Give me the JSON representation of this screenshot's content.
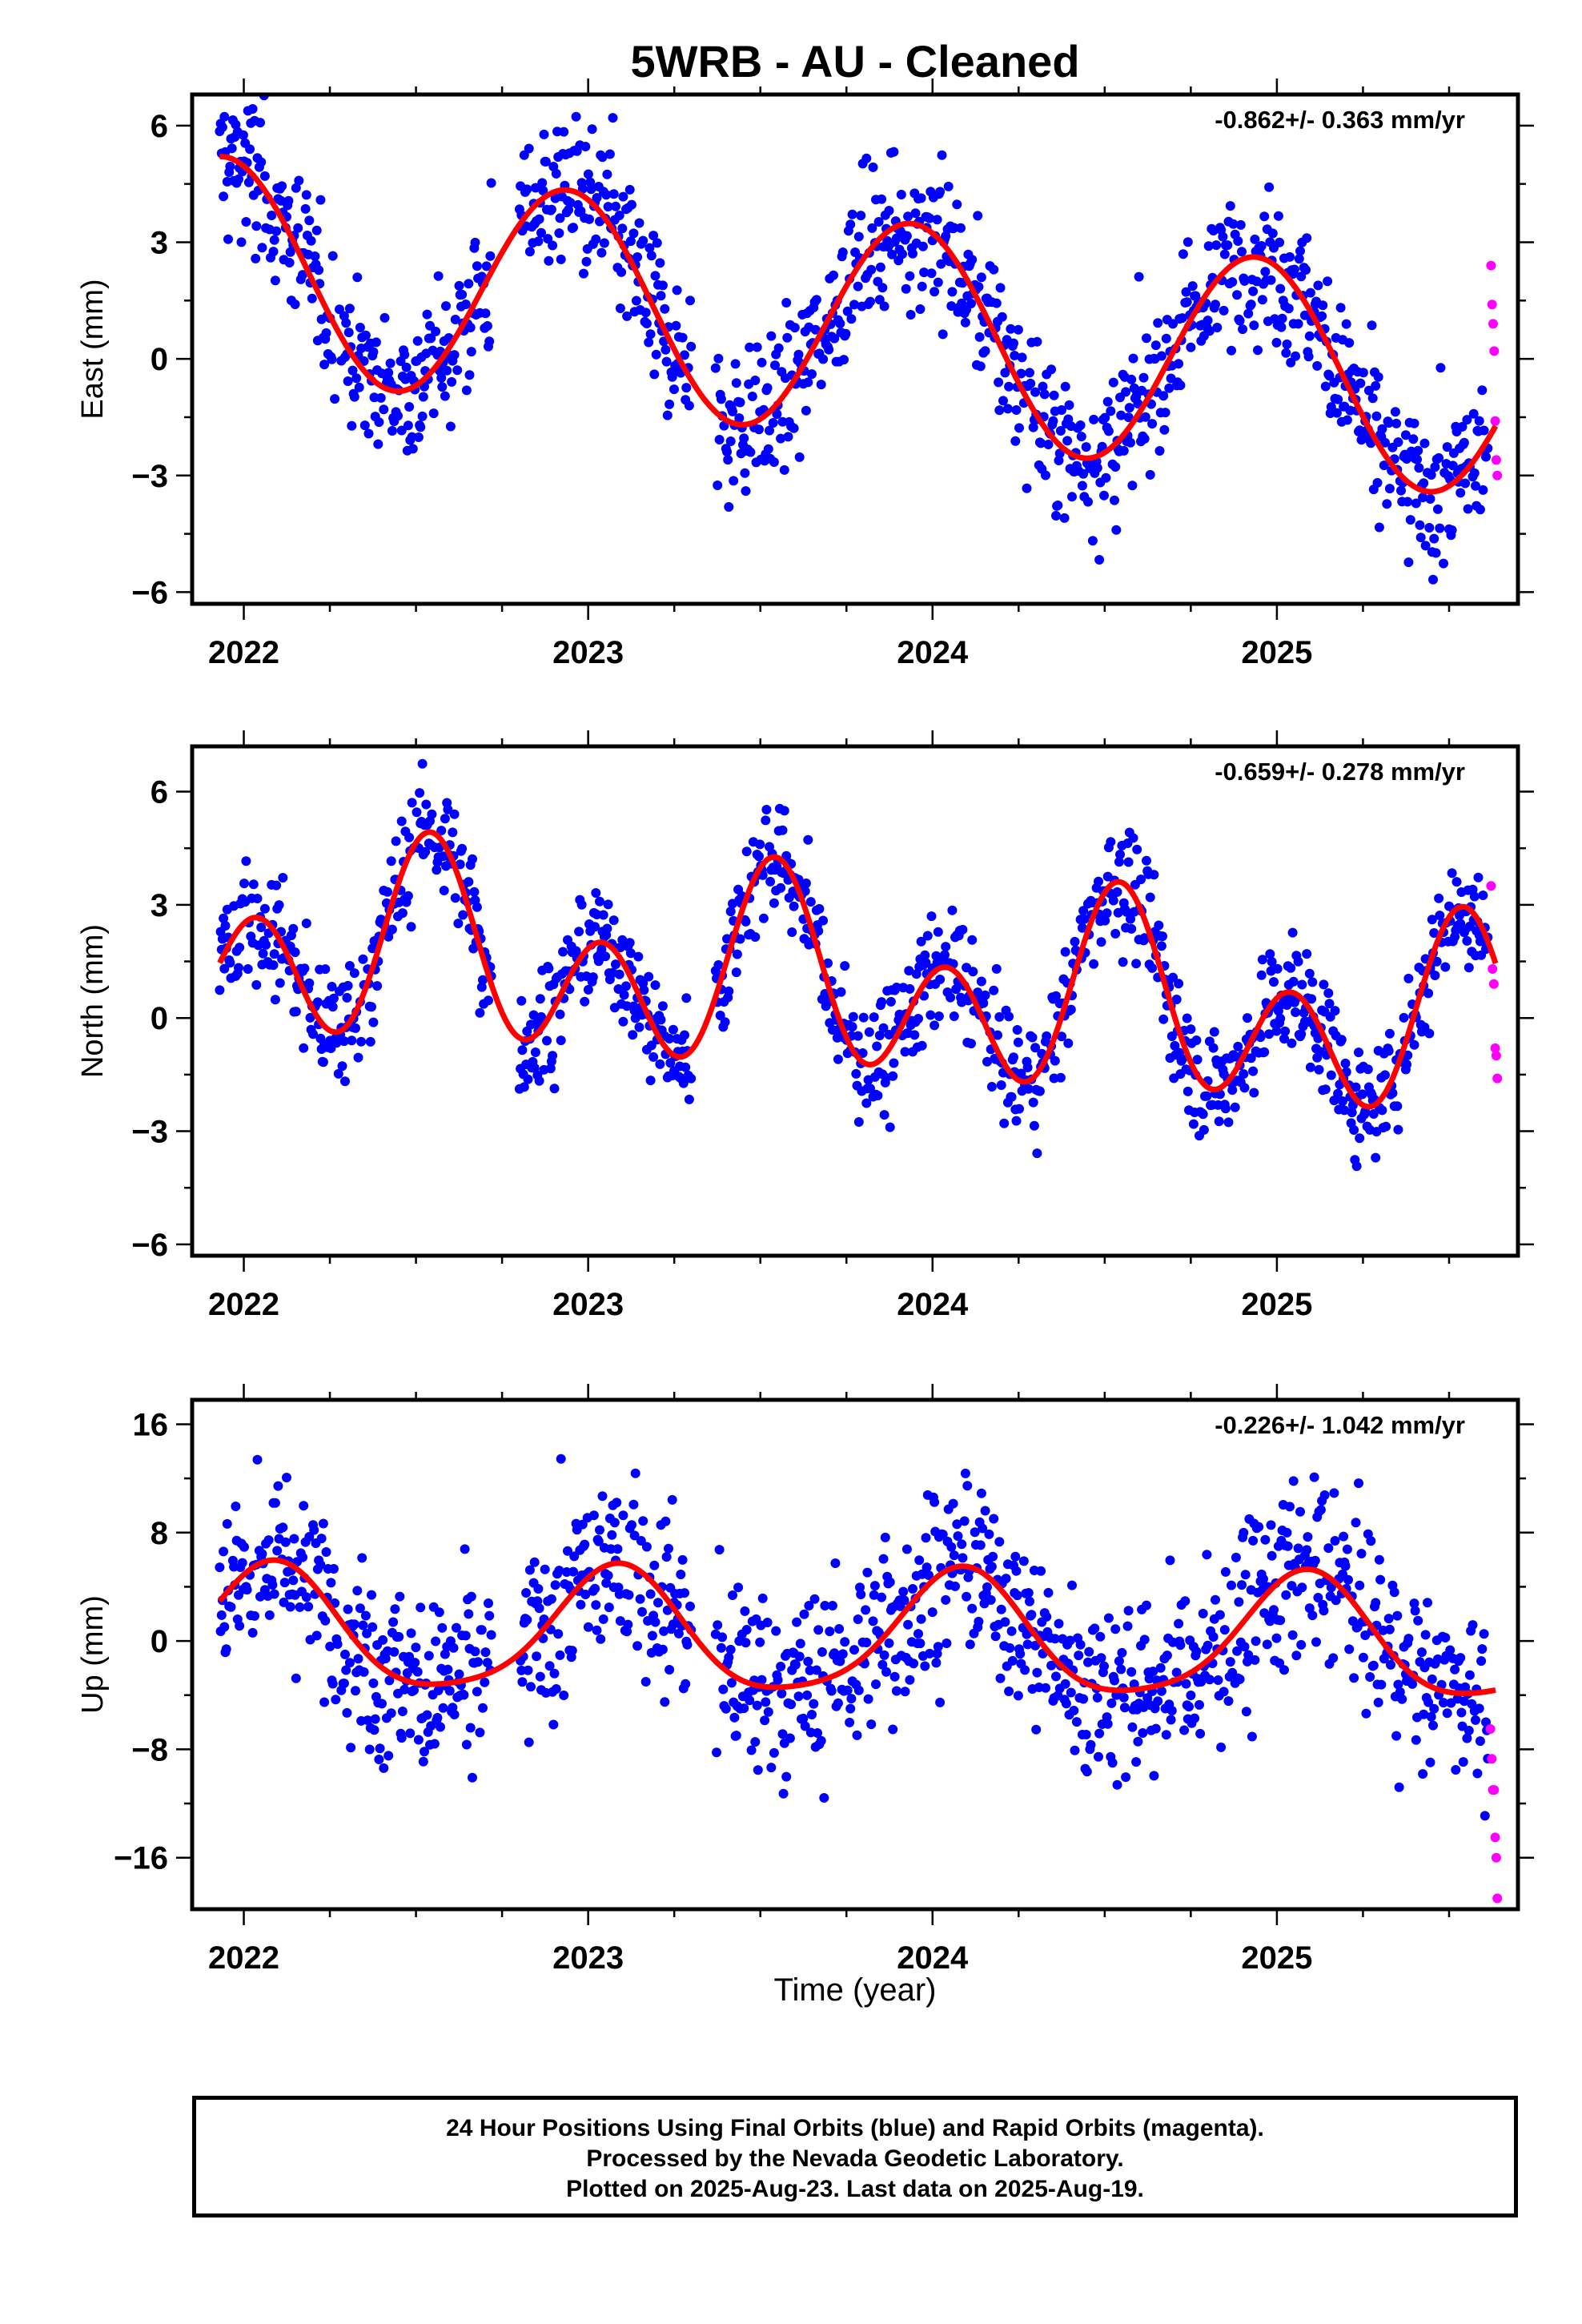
{
  "chart_data": {
    "title": "5WRB  - AU - Cleaned",
    "xlabel": "Time (year)",
    "x_tick_labels": [
      "2022",
      "2023",
      "2024",
      "2025"
    ],
    "xlim": [
      2021.85,
      2025.7
    ],
    "series_colors": {
      "final_orbits": "#0000ff",
      "rapid_orbits": "#ff00ff",
      "model_fit": "#ff0000"
    },
    "panels": [
      {
        "type": "scatter",
        "ylabel": "East (mm)",
        "ylim": [
          -6.3,
          6.8
        ],
        "yticks": [
          -6,
          -3,
          0,
          3,
          6
        ],
        "ytick_labels": [
          "−6",
          "−3",
          "0",
          "3",
          "6"
        ],
        "rate": "-0.862+/- 0.363 mm/yr",
        "model": {
          "mean": 0.8,
          "trend": -0.862,
          "annual_amp": 2.8,
          "annual_peak": 0.94,
          "semiannual_amp": 0.0,
          "semiannual_peak": 0.0
        },
        "noise": 1.0,
        "gaps": [
          [
            2022.72,
            2022.8
          ],
          [
            2023.3,
            2023.37
          ]
        ],
        "rapid_points": [
          [
            2025.622,
            2.4
          ],
          [
            2025.625,
            1.4
          ],
          [
            2025.628,
            0.9
          ],
          [
            2025.631,
            0.2
          ],
          [
            2025.634,
            -1.6
          ],
          [
            2025.637,
            -2.6
          ],
          [
            2025.64,
            -3.0
          ]
        ]
      },
      {
        "type": "scatter",
        "ylabel": "North (mm)",
        "ylim": [
          -6.3,
          7.2
        ],
        "yticks": [
          -6,
          -3,
          0,
          3,
          6
        ],
        "ytick_labels": [
          "−6",
          "−3",
          "0",
          "3",
          "6"
        ],
        "rate": "-0.659+/- 0.278 mm/yr",
        "model": {
          "mean": 0.8,
          "trend": -0.659,
          "annual_amp": 1.3,
          "annual_peak": 0.55,
          "semiannual_amp": 2.0,
          "semiannual_peak": 0.04
        },
        "noise": 0.8,
        "gaps": [
          [
            2022.72,
            2022.8
          ],
          [
            2023.3,
            2023.37
          ]
        ],
        "rapid_points": [
          [
            2025.622,
            3.5
          ],
          [
            2025.626,
            1.3
          ],
          [
            2025.63,
            0.9
          ],
          [
            2025.634,
            -0.8
          ],
          [
            2025.637,
            -1.0
          ],
          [
            2025.64,
            -1.6
          ]
        ]
      },
      {
        "type": "scatter",
        "ylabel": "Up (mm)",
        "ylim": [
          -19.8,
          17.8
        ],
        "yticks": [
          -16,
          -8,
          0,
          8,
          16
        ],
        "ytick_labels": [
          "−16",
          "−8",
          "0",
          "8",
          "16"
        ],
        "rate": "-0.226+/- 1.042 mm/yr",
        "model": {
          "mean": 0.3,
          "trend": -0.226,
          "annual_amp": 4.5,
          "annual_peak": 0.08,
          "semiannual_amp": 0.8,
          "semiannual_peak": 0.1
        },
        "noise": 3.5,
        "gaps": [
          [
            2022.72,
            2022.8
          ],
          [
            2023.3,
            2023.37
          ]
        ],
        "rapid_points": [
          [
            2025.62,
            -6.5
          ],
          [
            2025.624,
            -8.7
          ],
          [
            2025.627,
            -11.0
          ],
          [
            2025.631,
            -11.0
          ],
          [
            2025.634,
            -14.5
          ],
          [
            2025.637,
            -16.0
          ],
          [
            2025.64,
            -19.0
          ]
        ]
      }
    ]
  },
  "footer": {
    "line1": "24 Hour Positions Using Final Orbits (blue) and Rapid Orbits (magenta).",
    "line2": "Processed by the Nevada Geodetic Laboratory.",
    "line3": "Plotted on 2025-Aug-23. Last data on 2025-Aug-19."
  }
}
